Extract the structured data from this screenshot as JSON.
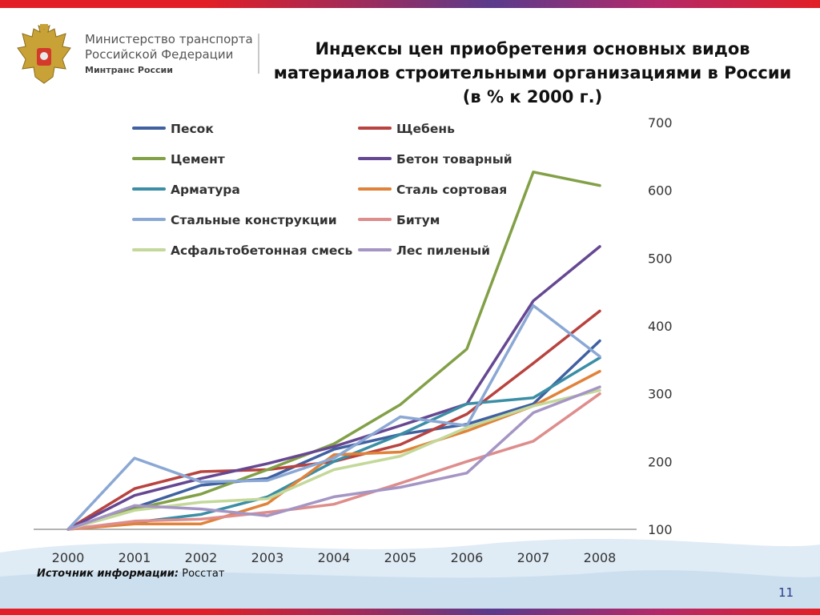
{
  "org": {
    "line1": "Министерство транспорта",
    "line2": "Российской Федерации",
    "line3": "Минтранс России"
  },
  "title": "Индексы цен приобретения основных видов материалов строительными организациями в России (в % к 2000 г.)",
  "source": {
    "label": "Источник информации:",
    "value": " Росстат"
  },
  "page_number": "11",
  "colors": {
    "accent_red": "#e21f26",
    "accent_purple": "#5a3b8c"
  },
  "chart_data": {
    "type": "line",
    "title": "Индексы цен приобретения основных видов материалов строительными организациями в России (в % к 2000 г.)",
    "x": [
      "2000",
      "2001",
      "2002",
      "2003",
      "2004",
      "2005",
      "2006",
      "2007",
      "2008"
    ],
    "ylim": [
      100,
      700
    ],
    "yticks": [
      100,
      200,
      300,
      400,
      500,
      600,
      700
    ],
    "y_axis_position": "right",
    "legend_position": "top-left",
    "grid": false,
    "series": [
      {
        "name": "Песок",
        "color": "#4060a0",
        "values": [
          100,
          132,
          165,
          175,
          218,
          240,
          255,
          285,
          378
        ]
      },
      {
        "name": "Щебень",
        "color": "#b8433f",
        "values": [
          100,
          160,
          185,
          188,
          200,
          225,
          270,
          345,
          422
        ]
      },
      {
        "name": "Цемент",
        "color": "#82a046",
        "values": [
          100,
          130,
          152,
          188,
          226,
          284,
          366,
          627,
          607
        ]
      },
      {
        "name": "Бетон товарный",
        "color": "#664892",
        "values": [
          100,
          150,
          175,
          197,
          222,
          253,
          285,
          437,
          517
        ]
      },
      {
        "name": "Арматура",
        "color": "#3b8ea5",
        "values": [
          100,
          110,
          122,
          148,
          200,
          240,
          285,
          294,
          353
        ]
      },
      {
        "name": "Сталь сортовая",
        "color": "#e0833a",
        "values": [
          100,
          108,
          108,
          138,
          210,
          214,
          245,
          282,
          333
        ]
      },
      {
        "name": "Стальные конструкции",
        "color": "#8ba8d4",
        "values": [
          100,
          205,
          170,
          172,
          205,
          266,
          253,
          430,
          355
        ]
      },
      {
        "name": "Битум",
        "color": "#dd8d8c",
        "values": [
          100,
          112,
          115,
          125,
          137,
          168,
          200,
          230,
          300
        ]
      },
      {
        "name": "Асфальтобетонная смесь",
        "color": "#c4d89a",
        "values": [
          100,
          128,
          140,
          145,
          188,
          208,
          250,
          282,
          305
        ]
      },
      {
        "name": "Лес пиленый",
        "color": "#a595c4",
        "values": [
          100,
          135,
          130,
          120,
          148,
          162,
          183,
          272,
          310
        ]
      }
    ]
  }
}
